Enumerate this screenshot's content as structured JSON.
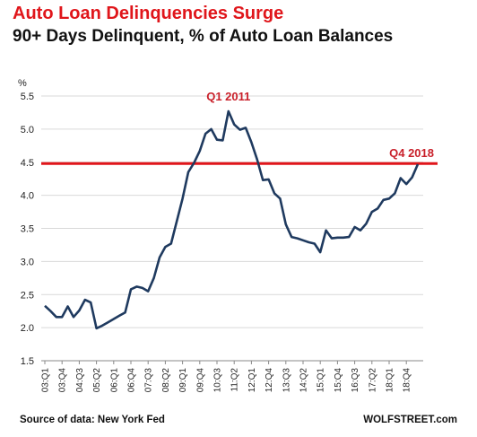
{
  "header": {
    "title": "Auto Loan Delinquencies Surge",
    "subtitle": "90+ Days Delinquent, % of Auto Loan Balances"
  },
  "footer": {
    "source": "Source of data: New York Fed",
    "brand": "WOLFSTREET.com"
  },
  "colors": {
    "title": "#e0161b",
    "line": "#1f3a5f",
    "reference": "#e0161b",
    "annotation": "#c9202a",
    "grid": "#d9d9d9"
  },
  "chart_data": {
    "type": "line",
    "ylabel": "%",
    "ylim": [
      1.5,
      5.5
    ],
    "yticks": [
      1.5,
      2.0,
      2.5,
      3.0,
      3.5,
      4.0,
      4.5,
      5.0,
      5.5
    ],
    "ytick_labels": [
      "1.5",
      "2.0",
      "2.5",
      "3.0",
      "3.5",
      "4.0",
      "4.5",
      "5.0",
      "5.5"
    ],
    "grid": "horizontal",
    "x_tick_labels": [
      "03:Q1",
      "03:Q4",
      "04:Q3",
      "05:Q2",
      "06:Q1",
      "06:Q4",
      "07:Q3",
      "08:Q2",
      "09:Q1",
      "09:Q4",
      "10:Q3",
      "11:Q2",
      "12:Q1",
      "12:Q4",
      "13:Q3",
      "14:Q2",
      "15:Q1",
      "15:Q4",
      "16:Q3",
      "17:Q2",
      "18:Q1",
      "18:Q4"
    ],
    "x_tick_every": 3,
    "series": [
      {
        "values": [
          2.33,
          2.25,
          2.16,
          2.16,
          2.32,
          2.16,
          2.26,
          2.42,
          2.38,
          1.99,
          2.03,
          2.08,
          2.13,
          2.18,
          2.23,
          2.58,
          2.62,
          2.6,
          2.55,
          2.75,
          3.06,
          3.22,
          3.27,
          3.61,
          3.95,
          4.35,
          4.49,
          4.67,
          4.93,
          5.0,
          4.84,
          4.83,
          5.27,
          5.07,
          4.99,
          5.02,
          4.8,
          4.54,
          4.23,
          4.24,
          4.03,
          3.95,
          3.56,
          3.37,
          3.35,
          3.32,
          3.29,
          3.27,
          3.14,
          3.47,
          3.35,
          3.36,
          3.36,
          3.37,
          3.52,
          3.47,
          3.57,
          3.75,
          3.8,
          3.93,
          3.95,
          4.03,
          4.26,
          4.17,
          4.27,
          4.47
        ]
      }
    ],
    "reference_line": {
      "value": 4.48,
      "label": "Q4 2018"
    },
    "annotations": [
      {
        "text": "Q1 2011",
        "index": 32
      }
    ]
  }
}
